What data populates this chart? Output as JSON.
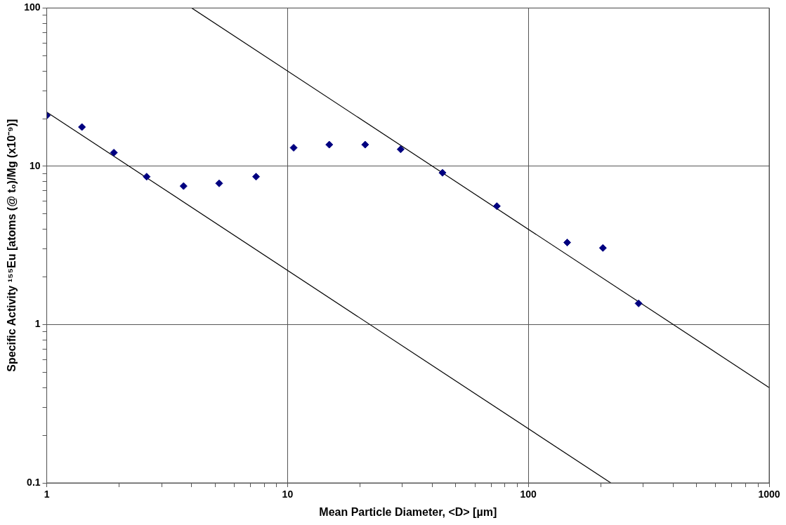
{
  "chart_data": {
    "type": "scatter",
    "xlabel": "Mean Particle Diameter, <D> [µm]",
    "ylabel": "Specific Activity ¹⁵⁵Eu [atoms (@ t₀)/Mg (x10⁻⁹)]",
    "log": "xy",
    "grid": true,
    "legend": false,
    "marker": "diamond",
    "xlim": [
      1,
      1000
    ],
    "ylim": [
      0.1,
      100
    ],
    "xticks": [
      1,
      {
        "value": 2,
        "label": null
      },
      {
        "value": 3,
        "label": null
      },
      {
        "value": 4,
        "label": null
      },
      {
        "value": 5,
        "label": null
      },
      {
        "value": 6,
        "label": null
      },
      {
        "value": 7,
        "label": null
      },
      {
        "value": 8,
        "label": null
      },
      {
        "value": 9,
        "label": null
      },
      10,
      {
        "value": 20,
        "label": null
      },
      {
        "value": 30,
        "label": null
      },
      {
        "value": 40,
        "label": null
      },
      {
        "value": 50,
        "label": null
      },
      {
        "value": 60,
        "label": null
      },
      {
        "value": 70,
        "label": null
      },
      {
        "value": 80,
        "label": null
      },
      {
        "value": 90,
        "label": null
      },
      100,
      {
        "value": 200,
        "label": null
      },
      {
        "value": 300,
        "label": null
      },
      {
        "value": 400,
        "label": null
      },
      {
        "value": 500,
        "label": null
      },
      {
        "value": 600,
        "label": null
      },
      {
        "value": 700,
        "label": null
      },
      {
        "value": 800,
        "label": null
      },
      {
        "value": 900,
        "label": null
      },
      1000
    ],
    "yticks": [
      0.1,
      {
        "value": 0.2,
        "label": null
      },
      {
        "value": 0.3,
        "label": null
      },
      {
        "value": 0.4,
        "label": null
      },
      {
        "value": 0.5,
        "label": null
      },
      {
        "value": 0.6,
        "label": null
      },
      {
        "value": 0.7,
        "label": null
      },
      {
        "value": 0.8,
        "label": null
      },
      {
        "value": 0.9,
        "label": null
      },
      1,
      {
        "value": 2,
        "label": null
      },
      {
        "value": 3,
        "label": null
      },
      {
        "value": 4,
        "label": null
      },
      {
        "value": 5,
        "label": null
      },
      {
        "value": 6,
        "label": null
      },
      {
        "value": 7,
        "label": null
      },
      {
        "value": 8,
        "label": null
      },
      {
        "value": 9,
        "label": null
      },
      10,
      {
        "value": 20,
        "label": null
      },
      {
        "value": 30,
        "label": null
      },
      {
        "value": 40,
        "label": null
      },
      {
        "value": 50,
        "label": null
      },
      {
        "value": 60,
        "label": null
      },
      {
        "value": 70,
        "label": null
      },
      {
        "value": 80,
        "label": null
      },
      {
        "value": 90,
        "label": null
      },
      100
    ],
    "series": [
      {
        "type": "scatter",
        "color": "#000080",
        "x": [
          1,
          1.4,
          1.9,
          2.6,
          3.7,
          5.2,
          7.4,
          10.6,
          14.9,
          21,
          29.5,
          44,
          74,
          145,
          204,
          287
        ],
        "values": [
          20.9,
          17.7,
          12.2,
          8.6,
          7.5,
          7.8,
          8.6,
          13.1,
          13.7,
          13.7,
          12.8,
          9.1,
          5.6,
          3.3,
          3.05,
          1.36
        ]
      },
      {
        "type": "line",
        "color": "#000000",
        "marker": "none",
        "x": [
          1,
          220
        ],
        "values": [
          22,
          0.1
        ]
      },
      {
        "type": "line",
        "color": "#000000",
        "marker": "none",
        "x": [
          4,
          1000
        ],
        "values": [
          100,
          0.4
        ]
      }
    ]
  }
}
